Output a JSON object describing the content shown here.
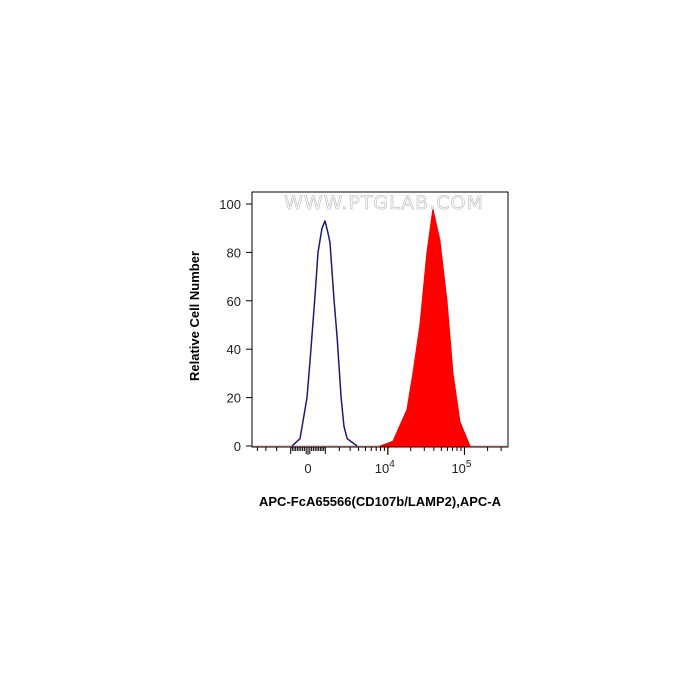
{
  "chart_data": {
    "type": "area",
    "title": "",
    "xlabel": "APC-FcA65566(CD107b/LAMP2),APC-A",
    "ylabel": "Relative Cell Number",
    "x_scale": "biexponential",
    "ylim": [
      0,
      100
    ],
    "y_ticks": [
      "0",
      "20",
      "40",
      "60",
      "80",
      "100"
    ],
    "x_ticks": [
      {
        "value": 0,
        "label": "0",
        "sup": ""
      },
      {
        "value": 10000,
        "label": "10",
        "sup": "4"
      },
      {
        "value": 100000,
        "label": "10",
        "sup": "5"
      }
    ],
    "grid": false,
    "legend": "none",
    "watermark": "WWW.PTGLAB.COM",
    "series": [
      {
        "style": "outline",
        "color": "#1a1a7a",
        "x": [
          -918,
          -447,
          -55,
          111,
          391,
          563,
          798,
          983,
          1177,
          1310,
          1593,
          1819,
          2144,
          2400,
          2698,
          3807
        ],
        "y": [
          0,
          3,
          20,
          35,
          62,
          80,
          90,
          93,
          88,
          84,
          60,
          45,
          20,
          8,
          3,
          0
        ]
      },
      {
        "style": "filled",
        "color": "#ff0000",
        "x": [
          7900,
          11650,
          17780,
          21300,
          26340,
          32500,
          38850,
          47900,
          59200,
          71000,
          87400,
          118000
        ],
        "y": [
          0,
          2,
          15,
          30,
          50,
          80,
          98,
          85,
          60,
          30,
          10,
          0
        ]
      }
    ]
  }
}
